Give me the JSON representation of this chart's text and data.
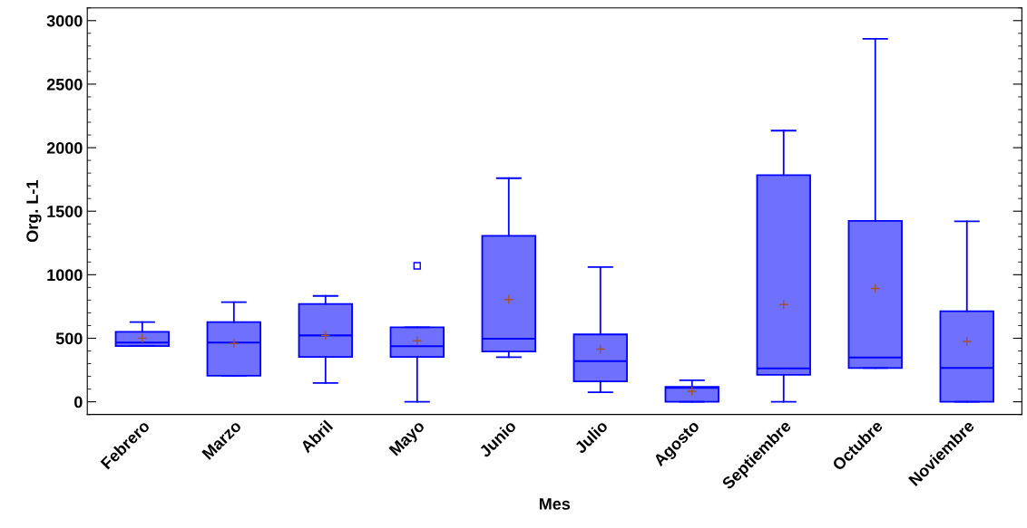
{
  "chart_data": {
    "type": "box",
    "xlabel": "Mes",
    "ylabel": "Org. L-1",
    "categories": [
      "Febrero",
      "Marzo",
      "Abril",
      "Mayo",
      "Junio",
      "Julio",
      "Agosto",
      "Septiembre",
      "Octubre",
      "Noviembre"
    ],
    "color": "#7070ff",
    "boxes": [
      {
        "low": 438,
        "q1": 438,
        "median": 466,
        "q3": 551,
        "high": 628,
        "mean": 501
      },
      {
        "low": 205,
        "q1": 205,
        "median": 466,
        "q3": 628,
        "high": 784,
        "mean": 459
      },
      {
        "low": 148,
        "q1": 353,
        "median": 522,
        "q3": 770,
        "high": 833,
        "mean": 522
      },
      {
        "low": 0,
        "q1": 353,
        "median": 438,
        "q3": 586,
        "high": 586,
        "mean": 480,
        "outliers": [
          1070
        ]
      },
      {
        "low": 351,
        "q1": 395,
        "median": 496,
        "q3": 1306,
        "high": 1760,
        "mean": 805
      },
      {
        "low": 75,
        "q1": 160,
        "median": 320,
        "q3": 530,
        "high": 1061,
        "mean": 414
      },
      {
        "low": 0,
        "q1": 0,
        "median": 110,
        "q3": 118,
        "high": 169,
        "mean": 83
      },
      {
        "low": 0,
        "q1": 212,
        "median": 263,
        "q3": 1784,
        "high": 2134,
        "mean": 765
      },
      {
        "low": 266,
        "q1": 266,
        "median": 348,
        "q3": 1424,
        "high": 2857,
        "mean": 892
      },
      {
        "low": 0,
        "q1": 0,
        "median": 266,
        "q3": 713,
        "high": 1421,
        "mean": 475
      }
    ],
    "ylim": [
      -100,
      3100
    ],
    "yticks": [
      0,
      500,
      1000,
      1500,
      2000,
      2500,
      3000
    ],
    "grid": false
  }
}
